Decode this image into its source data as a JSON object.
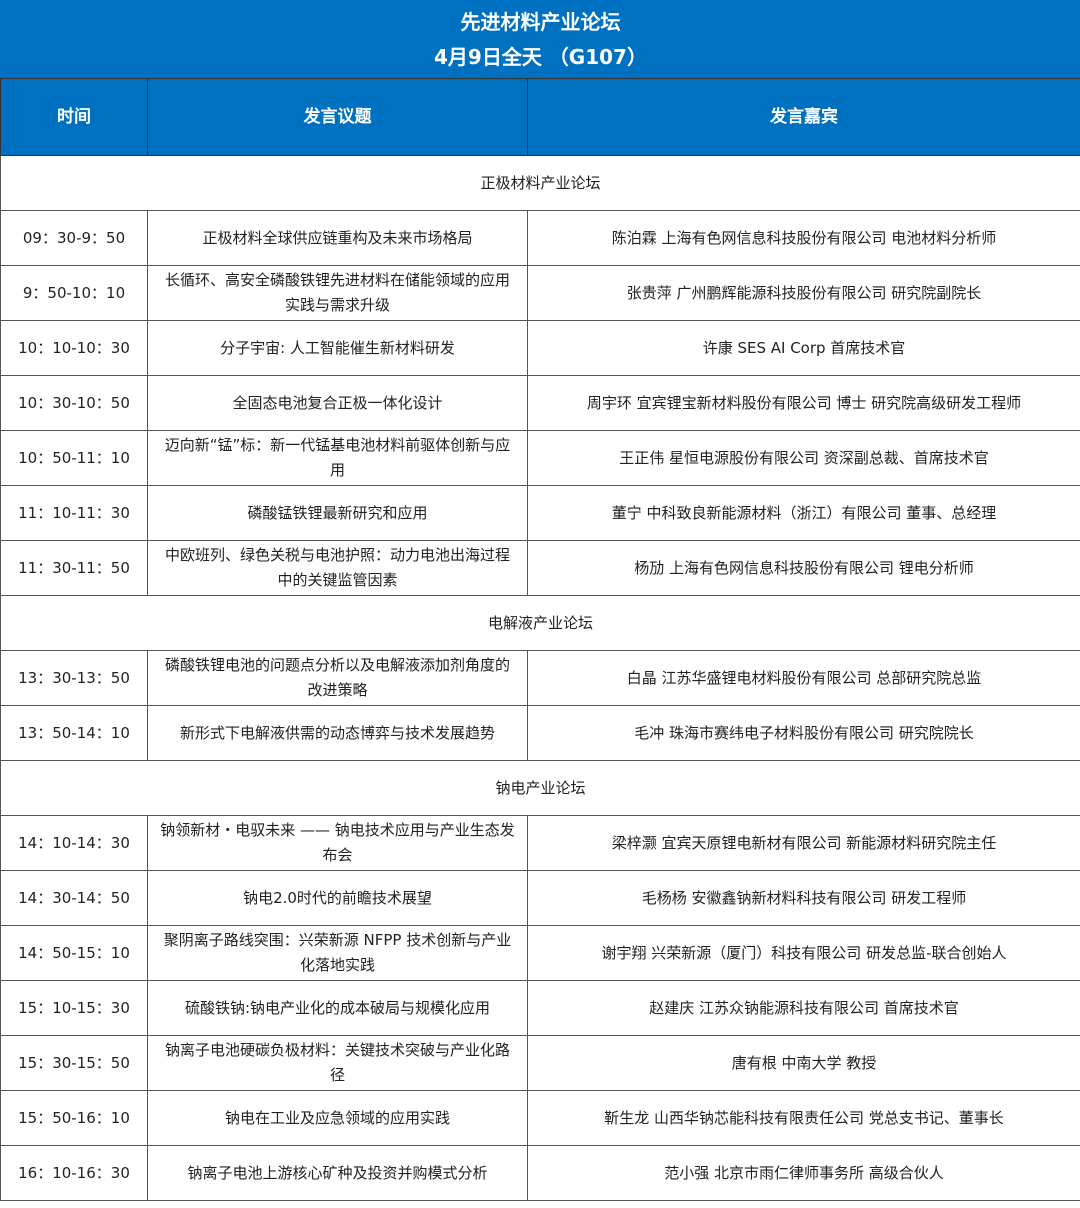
{
  "title": {
    "line1": "先进材料产业论坛",
    "line2": "4月9日全天 （G107）"
  },
  "colors": {
    "header_bg": "#0070c0"
  },
  "columns": [
    "时间",
    "发言议题",
    "发言嘉宾"
  ],
  "rows": [
    {
      "section": "正极材料产业论坛"
    },
    {
      "time": "09：30-9：50",
      "topic": "正极材料全球供应链重构及未来市场格局",
      "speaker": "陈泊霖 上海有色网信息科技股份有限公司 电池材料分析师"
    },
    {
      "time": "9：50-10：10",
      "topic": "长循环、高安全磷酸铁锂先进材料在储能领域的应用实践与需求升级",
      "speaker": "张贵萍 广州鹏辉能源科技股份有限公司 研究院副院长"
    },
    {
      "time": "10：10-10：30",
      "topic": "分子宇宙: 人工智能催生新材料研发",
      "speaker": "许康 SES AI Corp 首席技术官"
    },
    {
      "time": "10：30-10：50",
      "topic": "全固态电池复合正极一体化设计",
      "speaker": "周宇环 宜宾锂宝新材料股份有限公司 博士 研究院高级研发工程师"
    },
    {
      "time": "10：50-11：10",
      "topic": "迈向新“锰”标：新一代锰基电池材料前驱体创新与应用",
      "speaker": "王正伟 星恒电源股份有限公司 资深副总裁、首席技术官"
    },
    {
      "time": "11：10-11：30",
      "topic": "磷酸锰铁锂最新研究和应用",
      "speaker": "董宁 中科致良新能源材料（浙江）有限公司 董事、总经理"
    },
    {
      "time": "11：30-11：50",
      "topic": "中欧班列、绿色关税与电池护照：动力电池出海过程中的关键监管因素",
      "speaker": "杨劢 上海有色网信息科技股份有限公司 锂电分析师"
    },
    {
      "section": "电解液产业论坛"
    },
    {
      "time": "13：30-13：50",
      "topic": "磷酸铁锂电池的问题点分析以及电解液添加剂角度的改进策略",
      "speaker": "白晶 江苏华盛锂电材料股份有限公司 总部研究院总监"
    },
    {
      "time": "13：50-14：10",
      "topic": "新形式下电解液供需的动态博弈与技术发展趋势",
      "speaker": "毛冲 珠海市赛纬电子材料股份有限公司 研究院院长"
    },
    {
      "section": "钠电产业论坛"
    },
    {
      "time": "14：10-14：30",
      "topic": "钠领新材・电驭未来 —— 钠电技术应用与产业生态发布会",
      "speaker": "梁梓灏 宜宾天原锂电新材有限公司 新能源材料研究院主任"
    },
    {
      "time": "14：30-14：50",
      "topic": "钠电2.0时代的前瞻技术展望",
      "speaker": "毛杨杨 安徽鑫钠新材料科技有限公司 研发工程师"
    },
    {
      "time": "14：50-15：10",
      "topic": "聚阴离子路线突围：兴荣新源 NFPP 技术创新与产业化落地实践",
      "speaker": "谢宇翔 兴荣新源（厦门）科技有限公司 研发总监-联合创始人"
    },
    {
      "time": "15：10-15：30",
      "topic": "硫酸铁钠:钠电产业化的成本破局与规模化应用",
      "speaker": "赵建庆 江苏众钠能源科技有限公司 首席技术官"
    },
    {
      "time": "15：30-15：50",
      "topic": "钠离子电池硬碳负极材料：关键技术突破与产业化路径",
      "speaker": "唐有根 中南大学 教授"
    },
    {
      "time": "15：50-16：10",
      "topic": "钠电在工业及应急领域的应用实践",
      "speaker": "靳生龙 山西华钠芯能科技有限责任公司 党总支书记、董事长"
    },
    {
      "time": "16：10-16：30",
      "topic": "钠离子电池上游核心矿种及投资并购模式分析",
      "speaker": "范小强 北京市雨仁律师事务所 高级合伙人"
    }
  ]
}
